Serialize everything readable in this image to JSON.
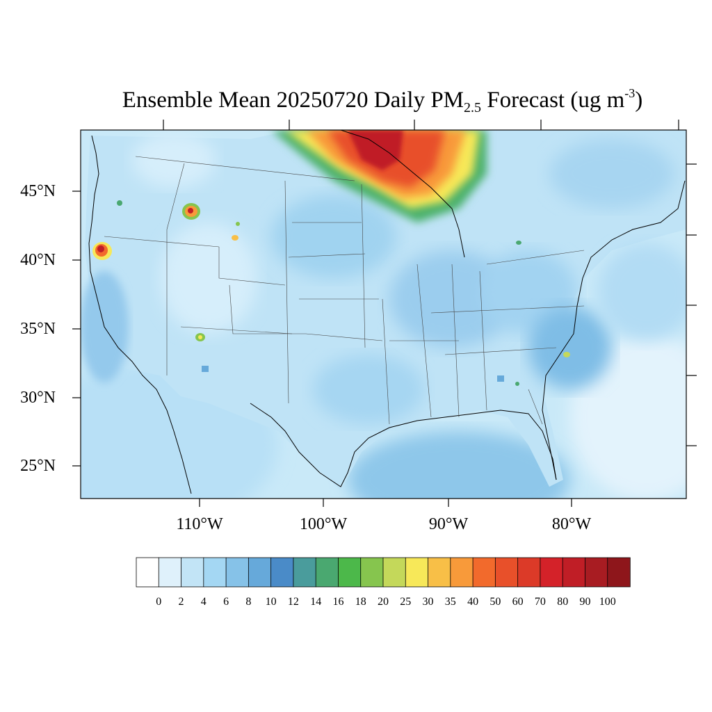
{
  "title": {
    "prefix": "Ensemble Mean 20250720 Daily PM",
    "subscript": "2.5",
    "middle": " Forecast (ug m",
    "superscript": "-3",
    "suffix": ")"
  },
  "lat_labels": [
    "45°N",
    "40°N",
    "35°N",
    "30°N",
    "25°N"
  ],
  "lon_labels": [
    "110°W",
    "100°W",
    "90°W",
    "80°W"
  ],
  "colorbar": {
    "levels": [
      "0",
      "2",
      "4",
      "6",
      "8",
      "10",
      "12",
      "14",
      "16",
      "18",
      "20",
      "25",
      "30",
      "35",
      "40",
      "50",
      "60",
      "70",
      "80",
      "90",
      "100"
    ],
    "colors": [
      "#ffffff",
      "#dff1fb",
      "#c2e4f6",
      "#a4d7f3",
      "#86c2e8",
      "#66a9da",
      "#4a8bc8",
      "#4a9c9c",
      "#4aa870",
      "#4cb84a",
      "#86c54e",
      "#c4d85a",
      "#f7e859",
      "#f8bf47",
      "#f89a3a",
      "#f26a2c",
      "#e8502a",
      "#dc3a28",
      "#d42229",
      "#c01e26",
      "#a81c22",
      "#8e161b"
    ]
  },
  "map_colors": {
    "ocean": "#c8e8f8",
    "land_base": "#a8d8f4",
    "coast": "#000000"
  }
}
